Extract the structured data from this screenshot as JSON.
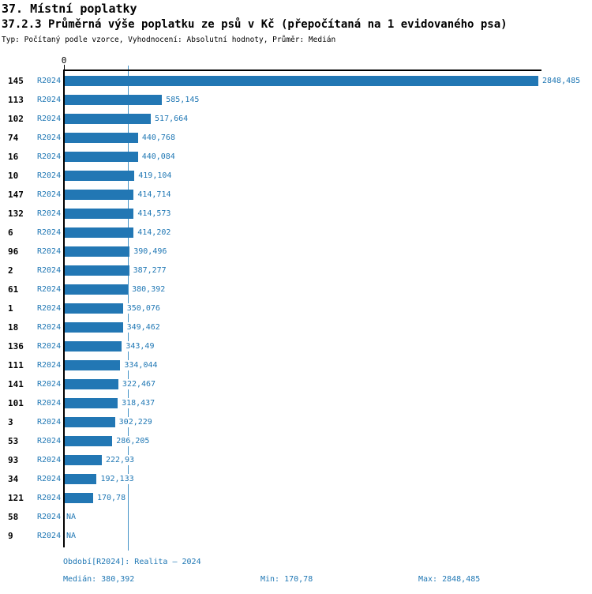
{
  "header": {
    "title": "37. Místní poplatky",
    "subtitle": "37.2.3 Průměrná výše poplatku ze psů v Kč (přepočítaná na 1 evidovaného psa)",
    "meta": "Typ: Počítaný podle vzorce, Vyhodnocení: Absolutní hodnoty, Průměr: Medián"
  },
  "chart_data": {
    "type": "bar",
    "orientation": "horizontal",
    "title": "37.2.3 Průměrná výše poplatku ze psů v Kč (přepočítaná na 1 evidovaného psa)",
    "series_name": "R2024",
    "axis_zero_label": "0",
    "xlim": [
      0,
      2848.485
    ],
    "grid": false,
    "legend_position": "none",
    "median_value": 380.392,
    "na_text": "NA",
    "rows": [
      {
        "category": "145",
        "series": "R2024",
        "value": 2848.485,
        "label": "2848,485"
      },
      {
        "category": "113",
        "series": "R2024",
        "value": 585.145,
        "label": "585,145"
      },
      {
        "category": "102",
        "series": "R2024",
        "value": 517.664,
        "label": "517,664"
      },
      {
        "category": "74",
        "series": "R2024",
        "value": 440.768,
        "label": "440,768"
      },
      {
        "category": "16",
        "series": "R2024",
        "value": 440.084,
        "label": "440,084"
      },
      {
        "category": "10",
        "series": "R2024",
        "value": 419.104,
        "label": "419,104"
      },
      {
        "category": "147",
        "series": "R2024",
        "value": 414.714,
        "label": "414,714"
      },
      {
        "category": "132",
        "series": "R2024",
        "value": 414.573,
        "label": "414,573"
      },
      {
        "category": "6",
        "series": "R2024",
        "value": 414.202,
        "label": "414,202"
      },
      {
        "category": "96",
        "series": "R2024",
        "value": 390.496,
        "label": "390,496"
      },
      {
        "category": "2",
        "series": "R2024",
        "value": 387.277,
        "label": "387,277"
      },
      {
        "category": "61",
        "series": "R2024",
        "value": 380.392,
        "label": "380,392"
      },
      {
        "category": "1",
        "series": "R2024",
        "value": 350.076,
        "label": "350,076"
      },
      {
        "category": "18",
        "series": "R2024",
        "value": 349.462,
        "label": "349,462"
      },
      {
        "category": "136",
        "series": "R2024",
        "value": 343.49,
        "label": "343,49"
      },
      {
        "category": "111",
        "series": "R2024",
        "value": 334.044,
        "label": "334,044"
      },
      {
        "category": "141",
        "series": "R2024",
        "value": 322.467,
        "label": "322,467"
      },
      {
        "category": "101",
        "series": "R2024",
        "value": 318.437,
        "label": "318,437"
      },
      {
        "category": "3",
        "series": "R2024",
        "value": 302.229,
        "label": "302,229"
      },
      {
        "category": "53",
        "series": "R2024",
        "value": 286.205,
        "label": "286,205"
      },
      {
        "category": "93",
        "series": "R2024",
        "value": 222.93,
        "label": "222,93"
      },
      {
        "category": "34",
        "series": "R2024",
        "value": 192.133,
        "label": "192,133"
      },
      {
        "category": "121",
        "series": "R2024",
        "value": 170.78,
        "label": "170,78"
      },
      {
        "category": "58",
        "series": "R2024",
        "value": null,
        "label": "NA"
      },
      {
        "category": "9",
        "series": "R2024",
        "value": null,
        "label": "NA"
      }
    ]
  },
  "footer": {
    "period": "Období[R2024]: Realita – 2024",
    "median": "Medián: 380,392",
    "min": "Min: 170,78",
    "max": "Max: 2848,485"
  },
  "colors": {
    "bar": "#2277b4",
    "label_text": "#1f77b4",
    "median_line": "#4292c6",
    "axis": "#000000"
  }
}
